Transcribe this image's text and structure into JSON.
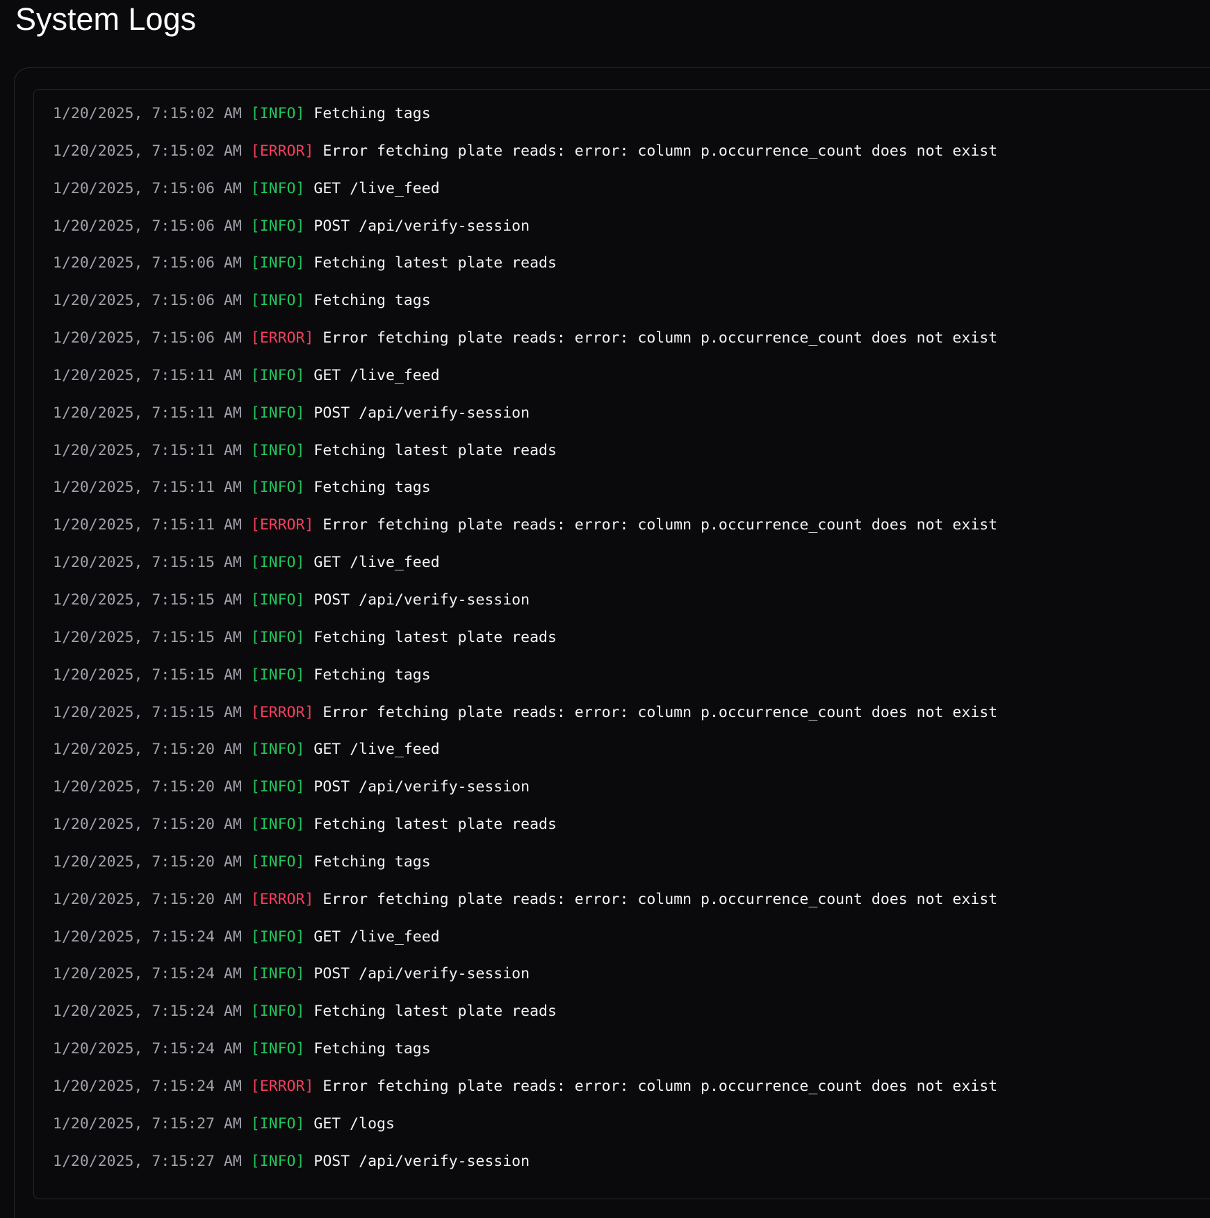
{
  "page": {
    "title": "System Logs"
  },
  "colors": {
    "background": "#0a0a0c",
    "timestamp": "#a1a1aa",
    "info": "#22c55e",
    "error": "#f43f5e",
    "message": "#f4f4f5",
    "border": "#26262b"
  },
  "logs": [
    {
      "timestamp": "1/20/2025, 7:15:02 AM",
      "level": "INFO",
      "message": "Fetching tags"
    },
    {
      "timestamp": "1/20/2025, 7:15:02 AM",
      "level": "ERROR",
      "message": "Error fetching plate reads: error: column p.occurrence_count does not exist"
    },
    {
      "timestamp": "1/20/2025, 7:15:06 AM",
      "level": "INFO",
      "message": "GET /live_feed"
    },
    {
      "timestamp": "1/20/2025, 7:15:06 AM",
      "level": "INFO",
      "message": "POST /api/verify-session"
    },
    {
      "timestamp": "1/20/2025, 7:15:06 AM",
      "level": "INFO",
      "message": "Fetching latest plate reads"
    },
    {
      "timestamp": "1/20/2025, 7:15:06 AM",
      "level": "INFO",
      "message": "Fetching tags"
    },
    {
      "timestamp": "1/20/2025, 7:15:06 AM",
      "level": "ERROR",
      "message": "Error fetching plate reads: error: column p.occurrence_count does not exist"
    },
    {
      "timestamp": "1/20/2025, 7:15:11 AM",
      "level": "INFO",
      "message": "GET /live_feed"
    },
    {
      "timestamp": "1/20/2025, 7:15:11 AM",
      "level": "INFO",
      "message": "POST /api/verify-session"
    },
    {
      "timestamp": "1/20/2025, 7:15:11 AM",
      "level": "INFO",
      "message": "Fetching latest plate reads"
    },
    {
      "timestamp": "1/20/2025, 7:15:11 AM",
      "level": "INFO",
      "message": "Fetching tags"
    },
    {
      "timestamp": "1/20/2025, 7:15:11 AM",
      "level": "ERROR",
      "message": "Error fetching plate reads: error: column p.occurrence_count does not exist"
    },
    {
      "timestamp": "1/20/2025, 7:15:15 AM",
      "level": "INFO",
      "message": "GET /live_feed"
    },
    {
      "timestamp": "1/20/2025, 7:15:15 AM",
      "level": "INFO",
      "message": "POST /api/verify-session"
    },
    {
      "timestamp": "1/20/2025, 7:15:15 AM",
      "level": "INFO",
      "message": "Fetching latest plate reads"
    },
    {
      "timestamp": "1/20/2025, 7:15:15 AM",
      "level": "INFO",
      "message": "Fetching tags"
    },
    {
      "timestamp": "1/20/2025, 7:15:15 AM",
      "level": "ERROR",
      "message": "Error fetching plate reads: error: column p.occurrence_count does not exist"
    },
    {
      "timestamp": "1/20/2025, 7:15:20 AM",
      "level": "INFO",
      "message": "GET /live_feed"
    },
    {
      "timestamp": "1/20/2025, 7:15:20 AM",
      "level": "INFO",
      "message": "POST /api/verify-session"
    },
    {
      "timestamp": "1/20/2025, 7:15:20 AM",
      "level": "INFO",
      "message": "Fetching latest plate reads"
    },
    {
      "timestamp": "1/20/2025, 7:15:20 AM",
      "level": "INFO",
      "message": "Fetching tags"
    },
    {
      "timestamp": "1/20/2025, 7:15:20 AM",
      "level": "ERROR",
      "message": "Error fetching plate reads: error: column p.occurrence_count does not exist"
    },
    {
      "timestamp": "1/20/2025, 7:15:24 AM",
      "level": "INFO",
      "message": "GET /live_feed"
    },
    {
      "timestamp": "1/20/2025, 7:15:24 AM",
      "level": "INFO",
      "message": "POST /api/verify-session"
    },
    {
      "timestamp": "1/20/2025, 7:15:24 AM",
      "level": "INFO",
      "message": "Fetching latest plate reads"
    },
    {
      "timestamp": "1/20/2025, 7:15:24 AM",
      "level": "INFO",
      "message": "Fetching tags"
    },
    {
      "timestamp": "1/20/2025, 7:15:24 AM",
      "level": "ERROR",
      "message": "Error fetching plate reads: error: column p.occurrence_count does not exist"
    },
    {
      "timestamp": "1/20/2025, 7:15:27 AM",
      "level": "INFO",
      "message": "GET /logs"
    },
    {
      "timestamp": "1/20/2025, 7:15:27 AM",
      "level": "INFO",
      "message": "POST /api/verify-session"
    }
  ]
}
